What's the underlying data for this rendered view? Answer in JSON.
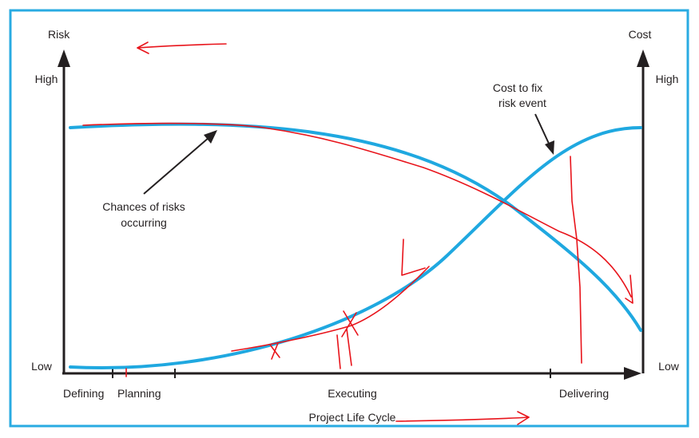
{
  "axes": {
    "left_title": "Risk",
    "right_title": "Cost",
    "left_high": "High",
    "left_low": "Low",
    "right_high": "High",
    "right_low": "Low",
    "x_title": "Project Life Cycle"
  },
  "phases": {
    "defining": "Defining",
    "planning": "Planning",
    "executing": "Executing",
    "delivering": "Delivering"
  },
  "annotations": {
    "chances_line1": "Chances of risks",
    "chances_line2": "occurring",
    "cost_line1": "Cost to fix",
    "cost_line2": "risk event"
  },
  "colors": {
    "frame": "#29abe2",
    "curve": "#1fa8e0",
    "axis": "#231f20",
    "ink": "#e8141b",
    "background": "#ffffff"
  }
}
